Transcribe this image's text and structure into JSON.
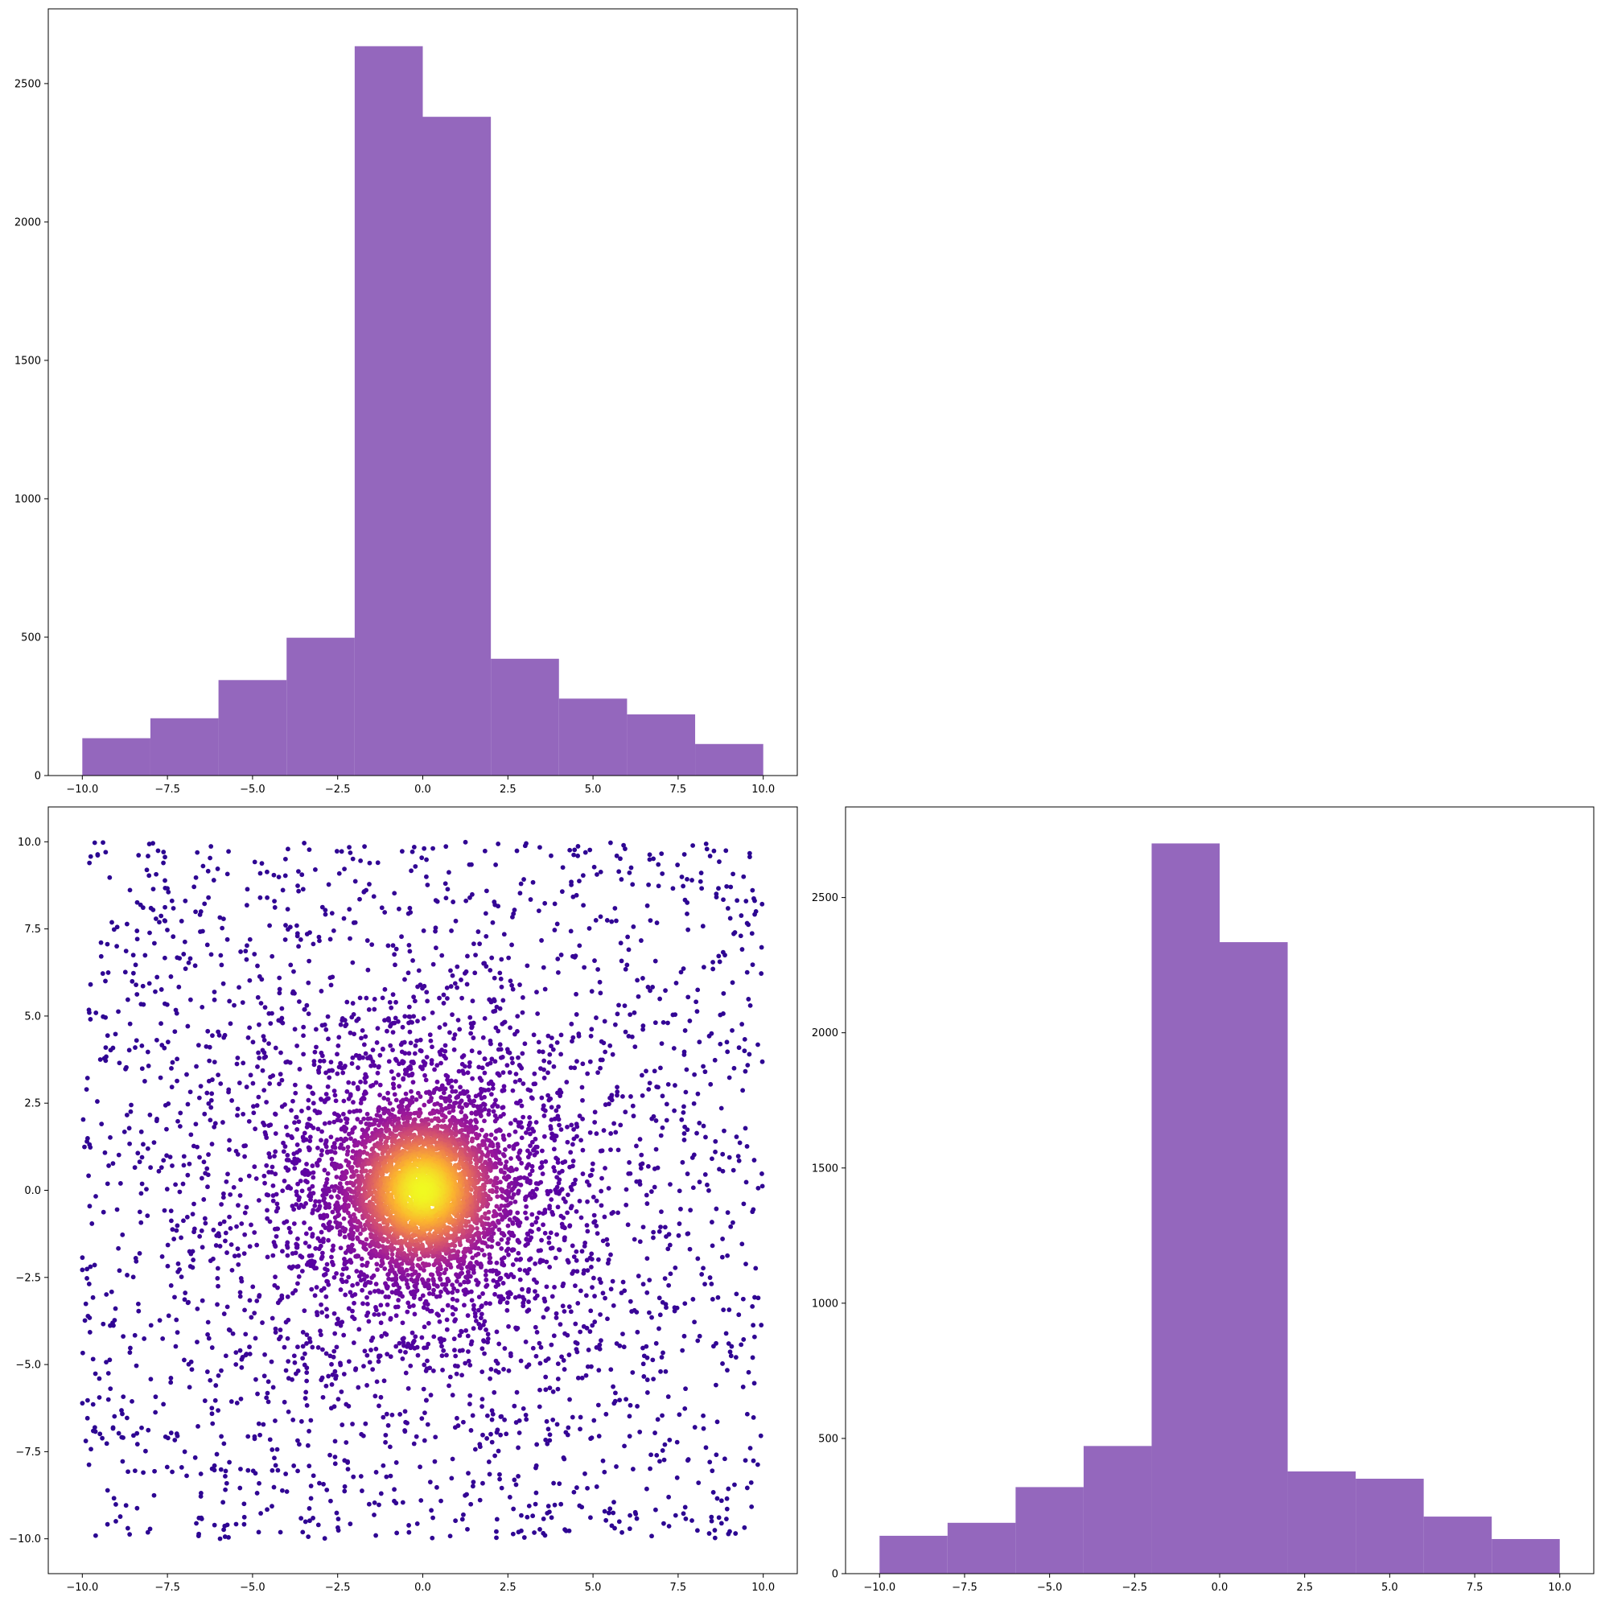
{
  "chart_data": [
    {
      "panel": "top-left",
      "type": "bar",
      "subtype": "histogram",
      "color": "#9467bd",
      "bin_edges": [
        -10,
        -8,
        -6,
        -4,
        -2,
        0,
        2,
        4,
        6,
        8,
        10
      ],
      "values": [
        135,
        207,
        345,
        498,
        2635,
        2380,
        422,
        278,
        221,
        114
      ],
      "xlim": [
        -11,
        11
      ],
      "ylim": [
        0,
        2770
      ],
      "xticks": [
        -10.0,
        -7.5,
        -5.0,
        -2.5,
        0.0,
        2.5,
        5.0,
        7.5,
        10.0
      ],
      "xtick_labels": [
        "−10.0",
        "−7.5",
        "−5.0",
        "−2.5",
        "0.0",
        "2.5",
        "5.0",
        "7.5",
        "10.0"
      ],
      "yticks": [
        0,
        500,
        1000,
        1500,
        2000,
        2500
      ],
      "ytick_labels": [
        "0",
        "500",
        "1000",
        "1500",
        "2000",
        "2500"
      ]
    },
    {
      "panel": "bottom-left",
      "type": "scatter",
      "colormap": "plasma",
      "colormap_stops": [
        "#0d0887",
        "#5b02a3",
        "#9a179b",
        "#cb4678",
        "#eb7852",
        "#fbb32f",
        "#f0f921"
      ],
      "color_encodes": "point density",
      "n_points_approx": 7200,
      "distribution": "dense gaussian core (sd ≈ 1.1) centred at (0, 0) plus uniform points over [-10, 10] x [-10, 10]",
      "xlim": [
        -11,
        11
      ],
      "ylim": [
        -11,
        11
      ],
      "xticks": [
        -10.0,
        -7.5,
        -5.0,
        -2.5,
        0.0,
        2.5,
        5.0,
        7.5,
        10.0
      ],
      "xtick_labels": [
        "−10.0",
        "−7.5",
        "−5.0",
        "−2.5",
        "0.0",
        "2.5",
        "5.0",
        "7.5",
        "10.0"
      ],
      "yticks": [
        -10.0,
        -7.5,
        -5.0,
        -2.5,
        0.0,
        2.5,
        5.0,
        7.5,
        10.0
      ],
      "ytick_labels": [
        "−10.0",
        "−7.5",
        "−5.0",
        "−2.5",
        "0.0",
        "2.5",
        "5.0",
        "7.5",
        "10.0"
      ]
    },
    {
      "panel": "bottom-right",
      "type": "bar",
      "subtype": "histogram",
      "color": "#9467bd",
      "bin_edges": [
        -10,
        -8,
        -6,
        -4,
        -2,
        0,
        2,
        4,
        6,
        8,
        10
      ],
      "values": [
        140,
        188,
        320,
        472,
        2700,
        2335,
        378,
        351,
        211,
        128
      ],
      "xlim": [
        -11,
        11
      ],
      "ylim": [
        0,
        2835
      ],
      "xticks": [
        -10.0,
        -7.5,
        -5.0,
        -2.5,
        0.0,
        2.5,
        5.0,
        7.5,
        10.0
      ],
      "xtick_labels": [
        "−10.0",
        "−7.5",
        "−5.0",
        "−2.5",
        "0.0",
        "2.5",
        "5.0",
        "7.5",
        "10.0"
      ],
      "yticks": [
        0,
        500,
        1000,
        1500,
        2000,
        2500
      ],
      "ytick_labels": [
        "0",
        "500",
        "1000",
        "1500",
        "2000",
        "2500"
      ]
    }
  ]
}
